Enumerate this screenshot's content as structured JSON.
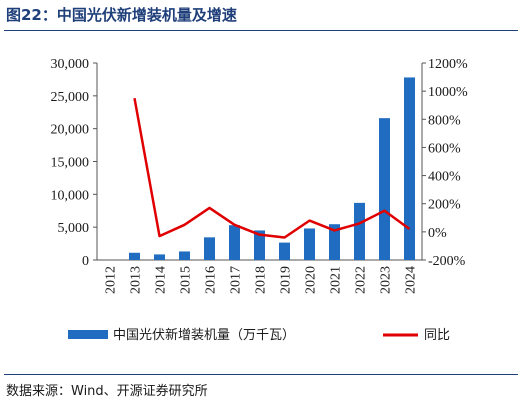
{
  "title": "图22：中国光伏新增装机量及增速",
  "source": "数据来源：Wind、开源证券研究所",
  "chart_data": {
    "type": "bar+line",
    "categories": [
      "2012",
      "2013",
      "2014",
      "2015",
      "2016",
      "2017",
      "2018",
      "2019",
      "2020",
      "2021",
      "2022",
      "2023",
      "2024"
    ],
    "series": [
      {
        "name": "中国光伏新增装机量（万千瓦）",
        "type": "bar",
        "axis": "left",
        "color": "#1f6cc0",
        "values": [
          0,
          1100,
          850,
          1300,
          3450,
          5300,
          4500,
          2650,
          4800,
          5450,
          8700,
          21600,
          27800
        ]
      },
      {
        "name": "同比",
        "type": "line",
        "axis": "right",
        "color": "#e00000",
        "values": [
          null,
          950,
          -30,
          50,
          170,
          50,
          -20,
          -40,
          80,
          10,
          60,
          150,
          20
        ]
      }
    ],
    "y_left": {
      "min": 0,
      "max": 30000,
      "ticks": [
        "0",
        "5,000",
        "10,000",
        "15,000",
        "20,000",
        "25,000",
        "30,000"
      ]
    },
    "y_right": {
      "min": -200,
      "max": 1200,
      "ticks": [
        "-200%",
        "0%",
        "200%",
        "400%",
        "600%",
        "800%",
        "1000%",
        "1200%"
      ]
    },
    "grid": false,
    "legend": "bottom"
  }
}
